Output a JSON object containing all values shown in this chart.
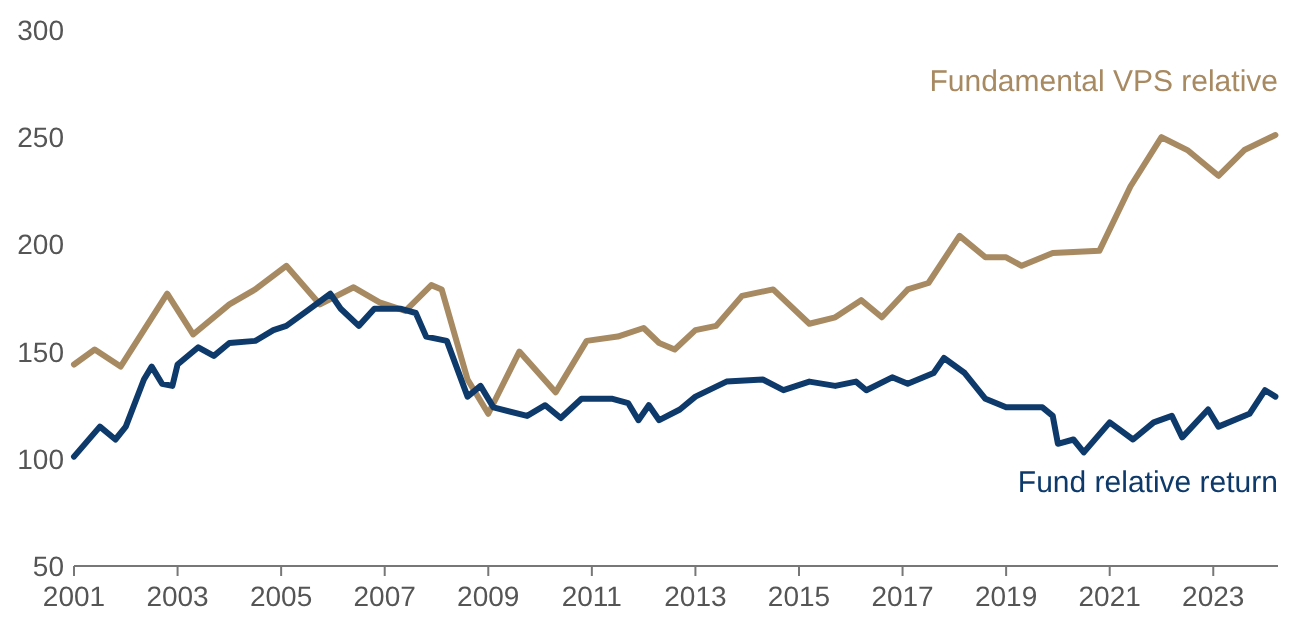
{
  "chart_data": {
    "type": "line",
    "xlim": [
      2001,
      2024.25
    ],
    "xticks": [
      2001,
      2003,
      2005,
      2007,
      2009,
      2011,
      2013,
      2015,
      2017,
      2019,
      2021,
      2023
    ],
    "ylim": [
      50,
      300
    ],
    "yticks": [
      50,
      100,
      150,
      200,
      250,
      300
    ],
    "grid": false,
    "legend": false,
    "marker": "none",
    "line_style": "solid",
    "series": [
      {
        "name": "Fundamental VPS relative",
        "color": "#a88a62",
        "x": [
          2001,
          2001.4,
          2001.9,
          2002.8,
          2003.3,
          2004.0,
          2004.5,
          2005.1,
          2005.75,
          2006.4,
          2006.9,
          2007.4,
          2007.9,
          2008.1,
          2008.6,
          2009.0,
          2009.6,
          2010.3,
          2010.9,
          2011.5,
          2012.0,
          2012.3,
          2012.6,
          2013.0,
          2013.4,
          2013.9,
          2014.5,
          2015.2,
          2015.7,
          2016.2,
          2016.6,
          2017.1,
          2017.5,
          2018.1,
          2018.6,
          2019.0,
          2019.3,
          2019.9,
          2020.8,
          2021.4,
          2022.0,
          2022.5,
          2023.1,
          2023.6,
          2024.2
        ],
        "values": [
          144,
          151,
          143,
          177,
          158,
          172,
          179,
          190,
          172,
          180,
          173,
          169,
          181,
          179,
          137,
          121,
          150,
          131,
          155,
          157,
          161,
          154,
          151,
          160,
          162,
          176,
          179,
          163,
          166,
          174,
          166,
          179,
          182,
          204,
          194,
          194,
          190,
          196,
          197,
          227,
          250,
          244,
          232,
          244,
          251
        ]
      },
      {
        "name": "Fund relative return",
        "color": "#0d3a6b",
        "x": [
          2001,
          2001.5,
          2001.8,
          2002.0,
          2002.35,
          2002.5,
          2002.7,
          2002.9,
          2003.0,
          2003.4,
          2003.7,
          2004.0,
          2004.5,
          2004.85,
          2005.1,
          2005.5,
          2005.95,
          2006.15,
          2006.5,
          2006.8,
          2007.3,
          2007.6,
          2007.8,
          2008.2,
          2008.6,
          2008.85,
          2009.1,
          2009.75,
          2010.1,
          2010.4,
          2010.8,
          2011.4,
          2011.7,
          2011.9,
          2012.1,
          2012.3,
          2012.7,
          2013.0,
          2013.6,
          2014.3,
          2014.7,
          2015.2,
          2015.7,
          2016.1,
          2016.3,
          2016.8,
          2017.1,
          2017.6,
          2017.8,
          2018.2,
          2018.6,
          2019.0,
          2019.7,
          2019.9,
          2020.0,
          2020.3,
          2020.5,
          2021.0,
          2021.45,
          2021.85,
          2022.2,
          2022.4,
          2022.9,
          2023.1,
          2023.7,
          2024.0,
          2024.2
        ],
        "values": [
          101,
          115,
          109,
          115,
          137,
          143,
          135,
          134,
          144,
          152,
          148,
          154,
          155,
          160,
          162,
          169,
          177,
          170,
          162,
          170,
          170,
          168,
          157,
          155,
          129,
          134,
          124,
          120,
          125,
          119,
          128,
          128,
          126,
          118,
          125,
          118,
          123,
          129,
          136,
          137,
          132,
          136,
          134,
          136,
          132,
          138,
          135,
          140,
          147,
          140,
          128,
          124,
          124,
          120,
          107,
          109,
          103,
          117,
          109,
          117,
          120,
          110,
          123,
          115,
          121,
          132,
          129
        ]
      }
    ]
  }
}
